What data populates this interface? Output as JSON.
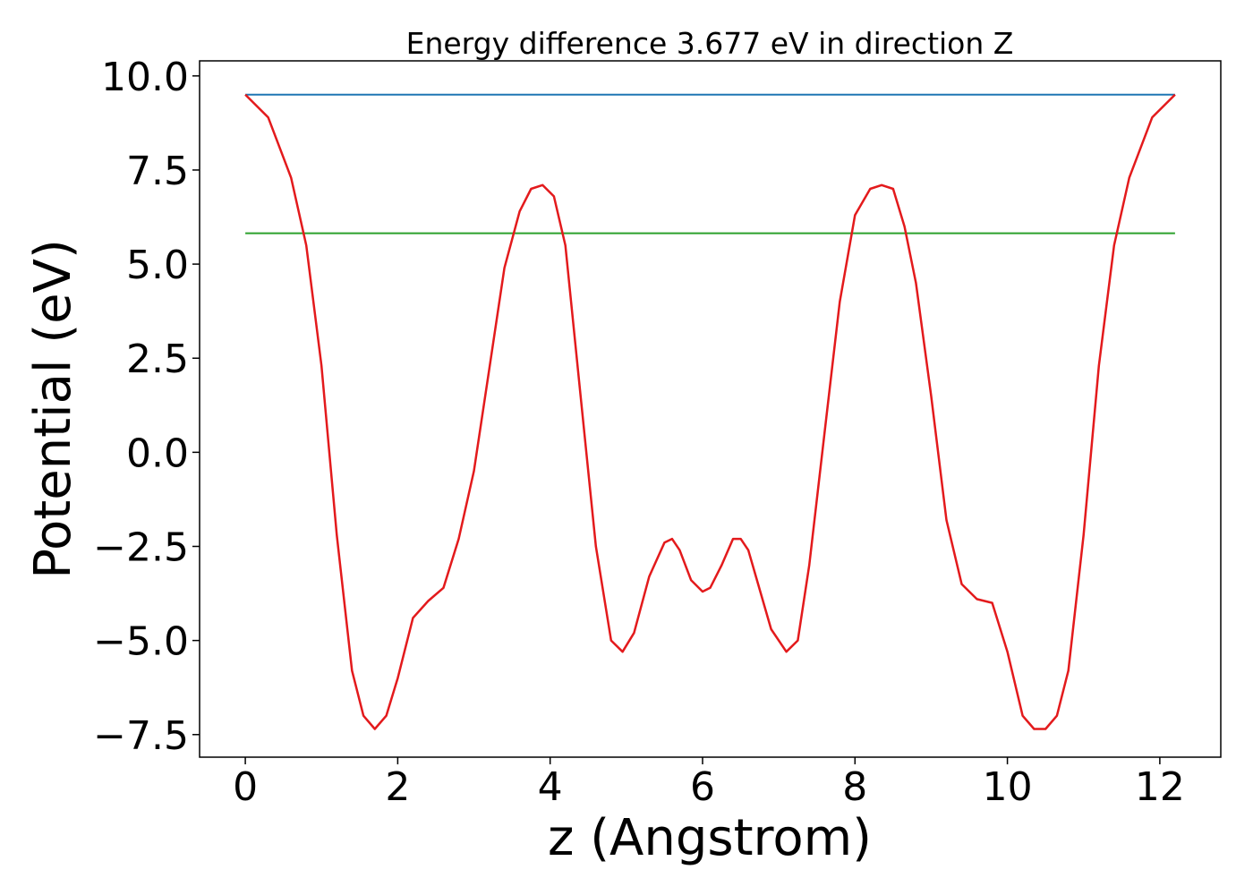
{
  "chart_data": {
    "type": "line",
    "title": "Energy difference 3.677 eV in direction Z",
    "xlabel": "z (Angstrom)",
    "ylabel": "Potential (eV)",
    "xlim": [
      -0.6,
      12.8
    ],
    "ylim": [
      -8.1,
      10.4
    ],
    "xticks": [
      0,
      2,
      4,
      6,
      8,
      10,
      12
    ],
    "xtick_labels": [
      "0",
      "2",
      "4",
      "6",
      "8",
      "10",
      "12"
    ],
    "yticks": [
      -7.5,
      -5.0,
      -2.5,
      0.0,
      2.5,
      5.0,
      7.5,
      10.0
    ],
    "ytick_labels": [
      "−7.5",
      "−5.0",
      "−2.5",
      "0.0",
      "2.5",
      "5.0",
      "7.5",
      "10.0"
    ],
    "grid": false,
    "series": [
      {
        "color": "#1f77b4",
        "x": [
          0,
          12.2
        ],
        "y": [
          9.5,
          9.5
        ]
      },
      {
        "color": "#2ca02c",
        "x": [
          0,
          12.2
        ],
        "y": [
          5.82,
          5.82
        ]
      },
      {
        "color": "#e31a1c",
        "x": [
          0.0,
          0.3,
          0.6,
          0.8,
          1.0,
          1.2,
          1.4,
          1.55,
          1.7,
          1.85,
          2.0,
          2.2,
          2.4,
          2.6,
          2.8,
          3.0,
          3.2,
          3.4,
          3.6,
          3.75,
          3.9,
          4.05,
          4.2,
          4.4,
          4.6,
          4.8,
          4.95,
          5.1,
          5.3,
          5.5,
          5.6,
          5.7,
          5.85,
          6.0,
          6.1,
          6.25,
          6.4,
          6.5,
          6.6,
          6.7,
          6.9,
          7.1,
          7.25,
          7.4,
          7.6,
          7.8,
          8.0,
          8.2,
          8.35,
          8.5,
          8.65,
          8.8,
          9.0,
          9.2,
          9.4,
          9.6,
          9.8,
          10.0,
          10.2,
          10.35,
          10.5,
          10.65,
          10.8,
          11.0,
          11.2,
          11.4,
          11.6,
          11.9,
          12.2
        ],
        "y": [
          9.5,
          8.9,
          7.3,
          5.5,
          2.3,
          -2.2,
          -5.8,
          -7.0,
          -7.35,
          -7.0,
          -6.0,
          -4.4,
          -3.95,
          -3.6,
          -2.3,
          -0.5,
          2.2,
          4.9,
          6.4,
          7.0,
          7.1,
          6.8,
          5.5,
          1.5,
          -2.5,
          -5.0,
          -5.3,
          -4.8,
          -3.3,
          -2.4,
          -2.3,
          -2.6,
          -3.4,
          -3.7,
          -3.6,
          -3.0,
          -2.3,
          -2.3,
          -2.6,
          -3.3,
          -4.7,
          -5.3,
          -5.0,
          -3.0,
          0.5,
          4.0,
          6.3,
          7.0,
          7.1,
          7.0,
          6.0,
          4.5,
          1.5,
          -1.8,
          -3.5,
          -3.9,
          -4.0,
          -5.3,
          -7.0,
          -7.35,
          -7.35,
          -7.0,
          -5.8,
          -2.2,
          2.3,
          5.5,
          7.3,
          8.9,
          9.5
        ]
      }
    ]
  }
}
